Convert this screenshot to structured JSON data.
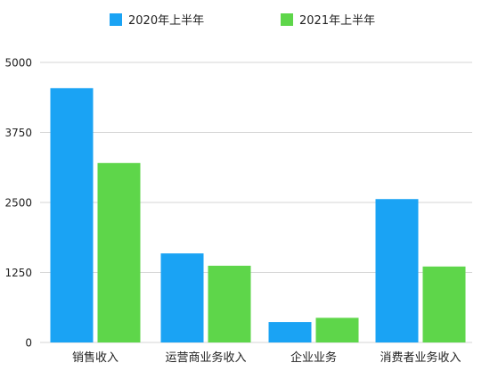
{
  "chart_data": {
    "type": "bar",
    "categories": [
      "销售收入",
      "运营商业务收入",
      "企业业务",
      "消费者业务收入"
    ],
    "series": [
      {
        "name": "2020年上半年",
        "color": "#1AA3F4",
        "values": [
          4540,
          1590,
          365,
          2560
        ]
      },
      {
        "name": "2021年上半年",
        "color": "#5ED64A",
        "values": [
          3204,
          1370,
          440,
          1356
        ]
      }
    ],
    "yticks": [
      0,
      1250,
      2500,
      3750,
      5000
    ],
    "ylim": [
      0,
      5000
    ],
    "grid": true,
    "legend_position": "top-center"
  }
}
